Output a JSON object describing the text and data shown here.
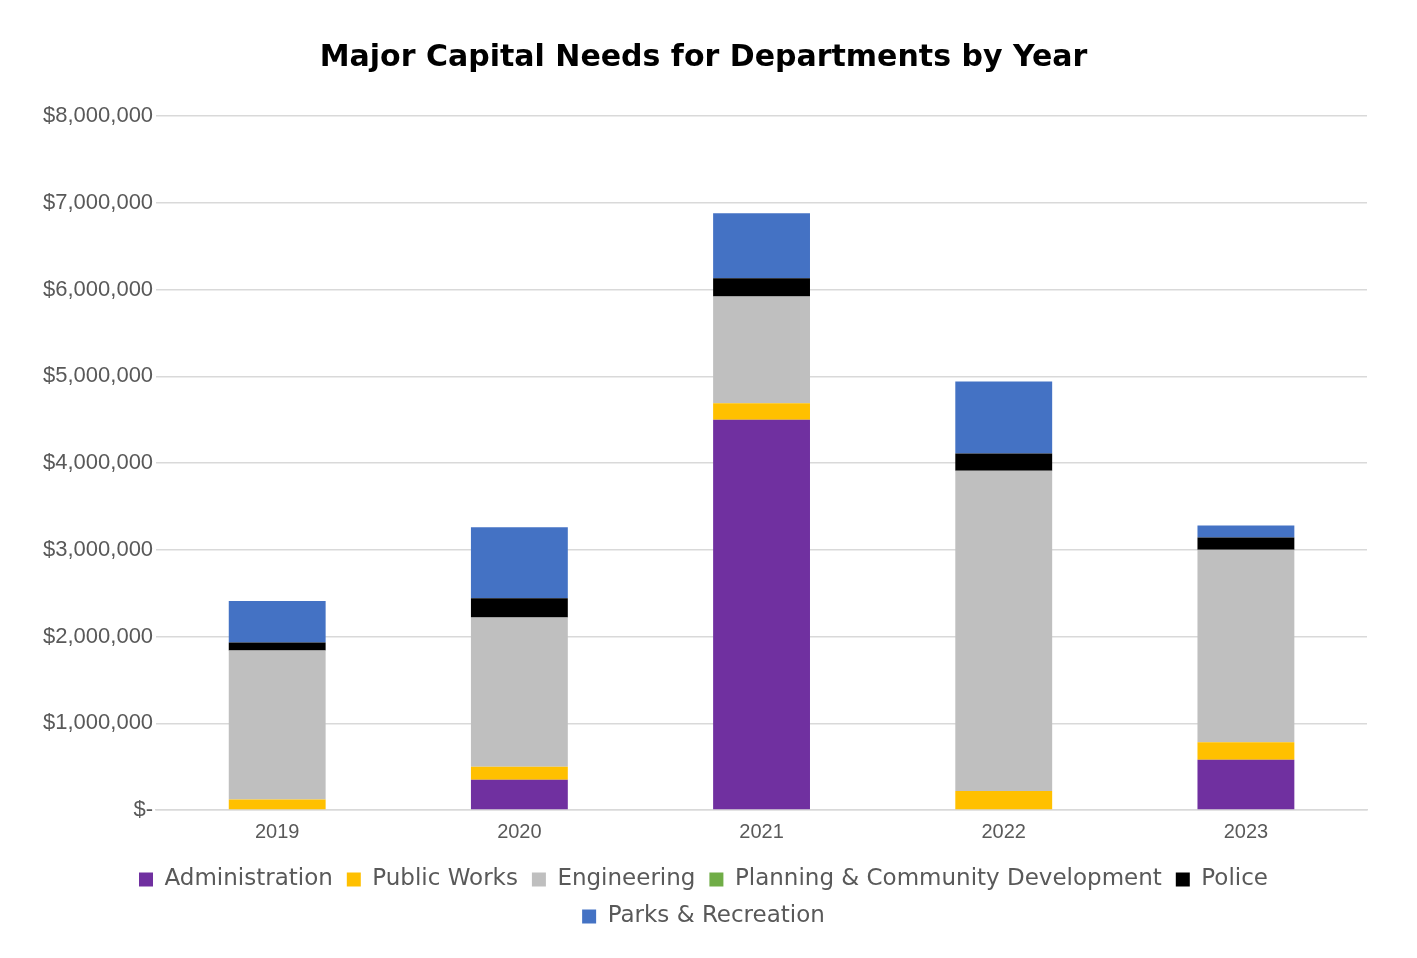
{
  "chart_data": {
    "type": "bar",
    "title": "Major Capital Needs for Departments by Year",
    "stacked": true,
    "categories": [
      "2019",
      "2020",
      "2021",
      "2022",
      "2023"
    ],
    "series": [
      {
        "name": "Administration",
        "color": "#7030a0",
        "values": [
          0,
          350000,
          4500000,
          0,
          580000
        ]
      },
      {
        "name": "Public Works",
        "color": "#ffc000",
        "values": [
          120000,
          150000,
          190000,
          220000,
          200000
        ]
      },
      {
        "name": "Engineering",
        "color": "#bfbfbf",
        "values": [
          1720000,
          1720000,
          1230000,
          3690000,
          2220000
        ]
      },
      {
        "name": "Planning & Community Development",
        "color": "#70ad47",
        "values": [
          0,
          0,
          0,
          0,
          0
        ]
      },
      {
        "name": "Police",
        "color": "#000000",
        "values": [
          90000,
          220000,
          210000,
          200000,
          140000
        ]
      },
      {
        "name": "Parks & Recreation",
        "color": "#4472c4",
        "values": [
          480000,
          820000,
          750000,
          830000,
          140000
        ]
      }
    ],
    "ylim": [
      0,
      8000000
    ],
    "yticks": [
      {
        "value": 0,
        "label": "$-"
      },
      {
        "value": 1000000,
        "label": "$1,000,000"
      },
      {
        "value": 2000000,
        "label": "$2,000,000"
      },
      {
        "value": 3000000,
        "label": "$3,000,000"
      },
      {
        "value": 4000000,
        "label": "$4,000,000"
      },
      {
        "value": 5000000,
        "label": "$5,000,000"
      },
      {
        "value": 6000000,
        "label": "$6,000,000"
      },
      {
        "value": 7000000,
        "label": "$7,000,000"
      },
      {
        "value": 8000000,
        "label": "$8,000,000"
      }
    ],
    "grid": "y",
    "legend": "bottom"
  }
}
